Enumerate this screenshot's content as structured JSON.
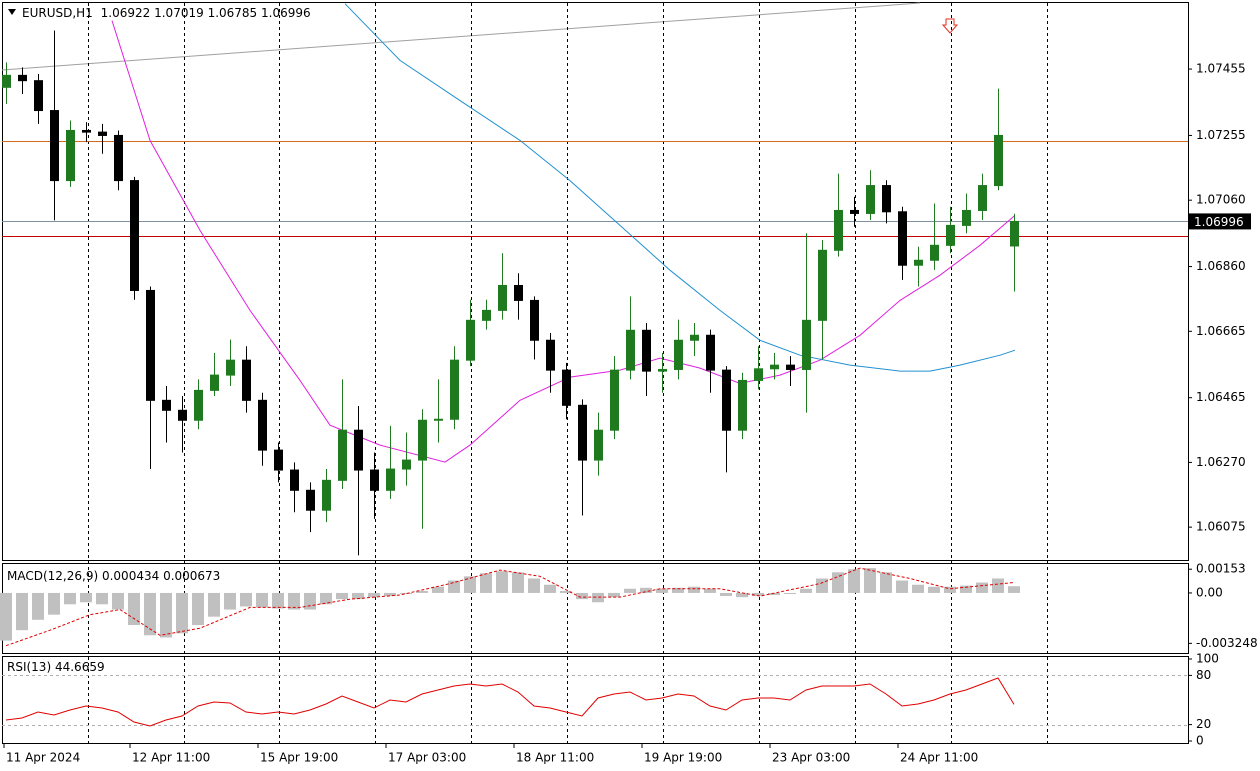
{
  "chart_data": [
    {
      "type": "candlestick",
      "title": "EURUSD,H1",
      "x": [
        1,
        5,
        9,
        13,
        17,
        21,
        25,
        29,
        33,
        37,
        41,
        45,
        49,
        53,
        57,
        61,
        65,
        69,
        73,
        77,
        81,
        85,
        89,
        93,
        97,
        101,
        105,
        109,
        113,
        117,
        121,
        125,
        129,
        133,
        137,
        141,
        145,
        149,
        153,
        157,
        161,
        165,
        169,
        173,
        177,
        181,
        185,
        189,
        193,
        197,
        201,
        205,
        209,
        213,
        217,
        221,
        225,
        229,
        233,
        237,
        241,
        245,
        249,
        253
      ],
      "open": [
        1.074,
        1.07436,
        1.0742,
        1.0733,
        1.07119,
        1.0727,
        1.07265,
        1.07255,
        1.07119,
        1.06788,
        1.06457,
        1.06427,
        1.06397,
        1.06487,
        1.06533,
        1.06578,
        1.06457,
        1.06307,
        1.06247,
        1.06186,
        1.06126,
        1.06216,
        1.06367,
        1.06247,
        1.06186,
        1.0625,
        1.06277,
        1.06397,
        1.064,
        1.06578,
        1.06698,
        1.06728,
        1.06803,
        1.06758,
        1.06638,
        1.06548,
        1.06442,
        1.06277,
        1.06367,
        1.06548,
        1.06668,
        1.06545,
        1.0655,
        1.06638,
        1.06653,
        1.06548,
        1.06367,
        1.06517,
        1.06552,
        1.06563,
        1.0655,
        1.06698,
        1.06909,
        1.07029,
        1.0702,
        1.07104,
        1.07025,
        1.06864,
        1.06879,
        1.06924,
        1.06984,
        1.07029,
        1.07104,
        1.06922
      ],
      "high": [
        1.07475,
        1.0746,
        1.0744,
        1.07571,
        1.073,
        1.07295,
        1.0729,
        1.0727,
        1.0713,
        1.068,
        1.065,
        1.0647,
        1.0652,
        1.066,
        1.0664,
        1.0662,
        1.0648,
        1.0633,
        1.0627,
        1.0621,
        1.0625,
        1.0652,
        1.0644,
        1.063,
        1.0638,
        1.0636,
        1.0643,
        1.0652,
        1.0662,
        1.0676,
        1.0676,
        1.069,
        1.0684,
        1.0677,
        1.0666,
        1.0657,
        1.0646,
        1.0642,
        1.0659,
        1.0677,
        1.0669,
        1.066,
        1.067,
        1.0669,
        1.0667,
        1.0656,
        1.0654,
        1.0662,
        1.066,
        1.0659,
        1.0696,
        1.0694,
        1.0714,
        1.0707,
        1.0715,
        1.0712,
        1.0704,
        1.0692,
        1.0705,
        1.0704,
        1.0708,
        1.0714,
        1.07396,
        1.07019
      ],
      "low": [
        1.0735,
        1.0738,
        1.0729,
        1.06999,
        1.071,
        1.07235,
        1.072,
        1.0709,
        1.0676,
        1.0625,
        1.0633,
        1.063,
        1.0637,
        1.0647,
        1.065,
        1.0642,
        1.0626,
        1.0621,
        1.0612,
        1.0606,
        1.0609,
        1.0619,
        1.0599,
        1.061,
        1.0616,
        1.062,
        1.0607,
        1.0633,
        1.0637,
        1.0656,
        1.0667,
        1.067,
        1.067,
        1.0658,
        1.0648,
        1.064,
        1.0611,
        1.0623,
        1.0634,
        1.0652,
        1.0647,
        1.0648,
        1.0652,
        1.0659,
        1.0648,
        1.0624,
        1.0634,
        1.0649,
        1.0652,
        1.065,
        1.0642,
        1.0658,
        1.0689,
        1.0698,
        1.07,
        1.0699,
        1.0682,
        1.068,
        1.0685,
        1.069,
        1.0696,
        1.07,
        1.0709,
        1.06785
      ],
      "close": [
        1.07436,
        1.0742,
        1.0733,
        1.07119,
        1.0727,
        1.07265,
        1.07255,
        1.07119,
        1.06788,
        1.06457,
        1.06427,
        1.06397,
        1.06487,
        1.06533,
        1.06578,
        1.06457,
        1.06307,
        1.06247,
        1.06186,
        1.06126,
        1.06216,
        1.06367,
        1.06247,
        1.06186,
        1.0625,
        1.06277,
        1.06397,
        1.064,
        1.06578,
        1.06698,
        1.06728,
        1.06803,
        1.06758,
        1.06638,
        1.06548,
        1.06442,
        1.06277,
        1.06367,
        1.06548,
        1.06668,
        1.06545,
        1.0655,
        1.06638,
        1.06653,
        1.06548,
        1.06367,
        1.06517,
        1.06552,
        1.06563,
        1.0655,
        1.06698,
        1.06909,
        1.07029,
        1.0702,
        1.07104,
        1.07025,
        1.06864,
        1.06879,
        1.06924,
        1.06984,
        1.07029,
        1.07104,
        1.07255,
        1.06996
      ],
      "bull_color": "#1f7a1f",
      "bear_color": "#000000",
      "xlim": [
        0,
        296.5
      ],
      "xticks": [
        {
          "value": 0.5,
          "label": "11 Apr 2024"
        },
        {
          "value": 32,
          "label": "12 Apr 11:00"
        },
        {
          "value": 64,
          "label": "15 Apr 19:00"
        },
        {
          "value": 96,
          "label": "17 Apr 03:00"
        },
        {
          "value": 128,
          "label": "18 Apr 11:00"
        },
        {
          "value": 160,
          "label": "19 Apr 19:00"
        },
        {
          "value": 192,
          "label": "23 Apr 03:00"
        },
        {
          "value": 224,
          "label": "24 Apr 11:00"
        }
      ],
      "xgrid": [
        21.5,
        45.5,
        69.25,
        93.25,
        117.25,
        141.25,
        165.25,
        189.25,
        213.25,
        237.25,
        261.25
      ],
      "ylim": [
        1.05976,
        1.07657
      ],
      "yticks": [
        1.07455,
        1.07255,
        {
          "value": 1.0706,
          "label": "1.07060"
        },
        {
          "value": 1.0686,
          "label": "1.06860"
        },
        1.06665,
        1.06465,
        {
          "value": 1.0627,
          "label": "1.06270"
        },
        1.06075
      ],
      "overlays": [
        {
          "color": "#e020e0",
          "x": [
            27.5,
            37,
            49.5,
            62,
            74.5,
            82,
            94.5,
            110.75,
            117,
            129.5,
            142,
            154.5,
            164.5,
            174.5,
            184.5,
            194.5,
            204.5,
            214.5,
            224.5,
            234.5,
            244.5,
            253.25
          ],
          "values": [
            1.07601,
            1.0724,
            1.06969,
            1.06728,
            1.06517,
            1.06382,
            1.06322,
            1.06271,
            1.06322,
            1.06457,
            1.06527,
            1.06548,
            1.06584,
            1.06554,
            1.06508,
            1.06533,
            1.06578,
            1.06653,
            1.06758,
            1.06834,
            1.06924,
            1.07014
          ]
        },
        {
          "color": "#2090d0",
          "x": [
            85.75,
            99.5,
            114.5,
            129.5,
            142,
            154.5,
            167,
            179.5,
            189.5,
            199.5,
            212,
            224.5,
            232,
            239.5,
            249.5,
            253.25
          ],
          "values": [
            1.07652,
            1.07481,
            1.0736,
            1.0724,
            1.07119,
            1.06984,
            1.06849,
            1.06728,
            1.06638,
            1.06593,
            1.06563,
            1.06545,
            1.06545,
            1.06563,
            1.06593,
            1.06608
          ]
        }
      ],
      "levels": [
        {
          "value": 1.07238,
          "color": "#d2691e"
        },
        {
          "value": 1.06952,
          "color": "#c00000"
        },
        {
          "value": 1.06996,
          "color": "#8090a0"
        }
      ]
    },
    {
      "type": "macd",
      "title": "MACD(12,26,9)",
      "color": "#c0c0c0",
      "signal_color": "#e00000",
      "x": [
        1,
        5,
        9,
        13,
        17,
        21,
        25,
        29,
        33,
        37,
        41,
        45,
        49,
        53,
        57,
        61,
        65,
        69,
        73,
        77,
        81,
        85,
        89,
        93,
        97,
        101,
        105,
        109,
        113,
        117,
        121,
        125,
        129,
        133,
        137,
        141,
        145,
        149,
        153,
        157,
        161,
        165,
        169,
        173,
        177,
        181,
        185,
        189,
        193,
        197,
        201,
        205,
        209,
        213,
        217,
        221,
        225,
        229,
        233,
        237,
        241,
        245,
        249,
        253
      ],
      "values": [
        -0.00307,
        -0.0024,
        -0.00173,
        -0.0014,
        -0.00073,
        -0.0006,
        -0.00073,
        -0.00107,
        -0.00207,
        -0.00273,
        -0.00287,
        -0.0026,
        -0.00207,
        -0.00153,
        -0.00107,
        -0.00087,
        -0.00093,
        -0.001,
        -0.00107,
        -0.00107,
        -0.00073,
        -0.0004,
        -0.0004,
        -0.00027,
        -0.0002,
        -7e-05,
        0.00013,
        0.0004,
        0.0008,
        0.00107,
        0.00127,
        0.0014,
        0.00133,
        0.00093,
        0.00053,
        0.00013,
        -0.0004,
        -0.0006,
        -0.00027,
        0.00027,
        0.00033,
        0.00027,
        0.00033,
        0.0004,
        0.00027,
        -0.0002,
        -0.00027,
        -0.0002,
        -0.00013,
        -7e-05,
        0.00027,
        0.00093,
        0.00133,
        0.00153,
        0.0016,
        0.00133,
        0.0008,
        0.00053,
        0.0004,
        0.0004,
        0.00047,
        0.00067,
        0.00093,
        0.000434
      ],
      "signal": {
        "x": [
          1,
          12,
          22,
          29.5,
          39.5,
          49.5,
          62,
          74.5,
          87,
          99.5,
          112,
          124.5,
          134.5,
          144.5,
          154.5,
          164.5,
          179.5,
          189.5,
          204.5,
          214.5,
          227,
          237,
          253
        ],
        "values": [
          -0.0034,
          -0.0024,
          -0.0014,
          -0.00107,
          -0.00273,
          -0.00227,
          -0.00093,
          -0.00093,
          -0.0004,
          -0.00013,
          0.0006,
          0.00147,
          0.00107,
          -0.00027,
          -0.00027,
          0.00027,
          0.00027,
          -0.0002,
          0.0006,
          0.0016,
          0.00093,
          0.00027,
          0.000673
        ]
      },
      "ylim": [
        -0.00387,
        0.00193
      ],
      "yticks": [
        0.00153,
        {
          "value": 0,
          "label": "0.00"
        },
        -0.003248
      ]
    },
    {
      "type": "line",
      "title": "RSI(13)",
      "color": "#e00000",
      "x": [
        1,
        5,
        9,
        13,
        17,
        21,
        25,
        29,
        33,
        37,
        41,
        45,
        49,
        53,
        57,
        61,
        65,
        69,
        73,
        77,
        81,
        85,
        89,
        93,
        97,
        101,
        105,
        109,
        113,
        117,
        121,
        125,
        129,
        133,
        137,
        141,
        145,
        149,
        153,
        157,
        161,
        165,
        169,
        173,
        177,
        181,
        185,
        189,
        193,
        197,
        201,
        205,
        209,
        213,
        217,
        221,
        225,
        229,
        233,
        237,
        241,
        245,
        249,
        253
      ],
      "values": [
        25.6,
        28,
        35.4,
        31.7,
        37.8,
        42.7,
        40.2,
        35.4,
        23.2,
        18.3,
        25.6,
        30.5,
        42.7,
        47.6,
        46.3,
        35.4,
        32.9,
        35.4,
        32.9,
        37.8,
        45.1,
        54.9,
        47.6,
        40.2,
        50,
        47.6,
        57.3,
        62.2,
        67.1,
        69.5,
        67.1,
        69.5,
        59.8,
        42.7,
        40.2,
        35.4,
        30.5,
        52.4,
        57.3,
        59.8,
        50,
        52.4,
        57.3,
        54.9,
        42.7,
        37.8,
        50,
        52.4,
        52.4,
        50,
        62.2,
        67.1,
        67.1,
        67.1,
        69.5,
        57.3,
        42.7,
        45.1,
        50,
        57.3,
        62.2,
        69.5,
        76.8,
        44.6659
      ],
      "ylim": [
        0,
        100
      ],
      "yticks": [
        100,
        80,
        20,
        0
      ],
      "levels": [
        80,
        20
      ]
    }
  ]
}
